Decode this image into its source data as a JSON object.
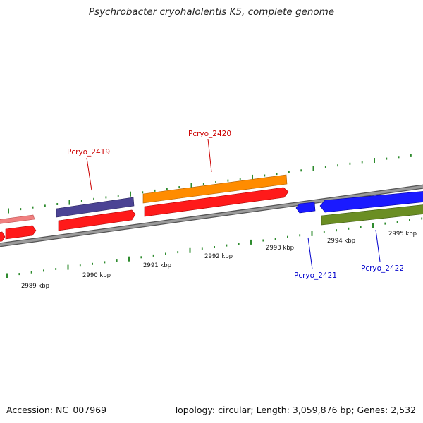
{
  "title": "Psychrobacter cryohalolentis K5, complete genome",
  "footer": {
    "accession": "Accession: NC_007969",
    "summary": "Topology: circular; Length: 3,059,876 bp; Genes: 2,532"
  },
  "colors": {
    "backbone": "#8c8c8c",
    "tick": "#2e8b2e",
    "cds": "#ff1a1a",
    "cds_light": "#f08080",
    "gene_purple": "#4b4394",
    "gene_orange": "#ff8c00",
    "gene_blue": "#1a1aff",
    "gene_green": "#6b8e23",
    "label_forward": "#cc0000",
    "label_reverse": "#0000cc"
  },
  "scale": {
    "unit": "kbp",
    "tick_labels": [
      "2989 kbp",
      "2990 kbp",
      "2991 kbp",
      "2992 kbp",
      "2993 kbp",
      "2994 kbp",
      "2995 kbp"
    ]
  },
  "genes": [
    {
      "locus": "Pcryo_2419",
      "strand": "forward"
    },
    {
      "locus": "Pcryo_2420",
      "strand": "forward"
    },
    {
      "locus": "Pcryo_2421",
      "strand": "reverse"
    },
    {
      "locus": "Pcryo_2422",
      "strand": "reverse"
    }
  ]
}
